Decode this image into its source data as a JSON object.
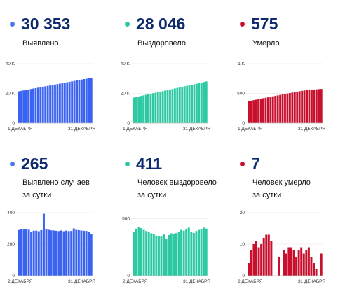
{
  "panels": [
    {
      "id": "cases-total",
      "value": "30 353",
      "label_lines": [
        "Выявлено"
      ],
      "color": "#3b63f2",
      "dot_color": "#4a75f0",
      "chart_data": {
        "type": "bar",
        "y_ticks": [
          0,
          20000,
          40000
        ],
        "y_tick_labels": [
          "0",
          "20 K",
          "40 K"
        ],
        "ylim": [
          0,
          40000
        ],
        "x_label_start": "1 ДЕКАБРЯ",
        "x_label_end": "31 ДЕКАБРЯ",
        "values": [
          21400,
          21710,
          22010,
          22320,
          22620,
          22930,
          23230,
          23540,
          23840,
          24150,
          24450,
          24760,
          25060,
          25370,
          25670,
          25980,
          26280,
          26590,
          26890,
          27200,
          27500,
          27810,
          28110,
          28420,
          28720,
          29030,
          29330,
          29640,
          29940,
          30150,
          30353
        ]
      }
    },
    {
      "id": "recovered-total",
      "value": "28 046",
      "label_lines": [
        "Выздоровело"
      ],
      "color": "#2ec9a3",
      "dot_color": "#2ec9a3",
      "chart_data": {
        "type": "bar",
        "y_ticks": [
          0,
          20000,
          40000
        ],
        "y_tick_labels": [
          "0",
          "20 K",
          "40 K"
        ],
        "ylim": [
          0,
          40000
        ],
        "x_label_start": "1 ДЕКАБРЯ",
        "x_label_end": "31 ДЕКАБРЯ",
        "values": [
          17200,
          17560,
          17920,
          18280,
          18640,
          19000,
          19360,
          19720,
          20080,
          20440,
          20800,
          21160,
          21520,
          21880,
          22240,
          22600,
          22960,
          23320,
          23680,
          24040,
          24400,
          24760,
          25120,
          25480,
          25840,
          26200,
          26560,
          26920,
          27280,
          27660,
          28046
        ]
      }
    },
    {
      "id": "deaths-total",
      "value": "575",
      "label_lines": [
        "Умерло"
      ],
      "color": "#c8102e",
      "dot_color": "#c8102e",
      "chart_data": {
        "type": "bar",
        "y_ticks": [
          0,
          500,
          1000
        ],
        "y_tick_labels": [
          "0",
          "500",
          "1 K"
        ],
        "ylim": [
          0,
          1000
        ],
        "x_label_start": "1 ДЕКАБРЯ",
        "x_label_end": "31 ДЕКАБРЯ",
        "values": [
          370,
          378,
          386,
          394,
          402,
          410,
          418,
          426,
          434,
          442,
          450,
          458,
          466,
          474,
          482,
          490,
          498,
          506,
          514,
          522,
          530,
          538,
          544,
          550,
          555,
          559,
          563,
          566,
          569,
          572,
          575
        ]
      }
    },
    {
      "id": "cases-daily",
      "value": "265",
      "label_lines": [
        "Выявлено случаев",
        "за сутки"
      ],
      "color": "#3b63f2",
      "dot_color": "#4a75f0",
      "chart_data": {
        "type": "bar",
        "y_ticks": [
          0,
          200,
          400
        ],
        "y_tick_labels": [
          "0",
          "200",
          "400"
        ],
        "ylim": [
          0,
          400
        ],
        "x_label_start": "2 ДЕКАБРЯ",
        "x_label_end": "31 ДЕКАБРЯ",
        "values": [
          290,
          295,
          293,
          298,
          292,
          280,
          285,
          286,
          282,
          289,
          393,
          296,
          291,
          288,
          287,
          285,
          283,
          287,
          282,
          286,
          283,
          284,
          300,
          291,
          289,
          287,
          285,
          284,
          280,
          265
        ]
      }
    },
    {
      "id": "recovered-daily",
      "value": "411",
      "label_lines": [
        "Человек выздоровело",
        "за сутки"
      ],
      "color": "#2ec9a3",
      "dot_color": "#2ec9a3",
      "chart_data": {
        "type": "bar",
        "y_ticks": [
          0,
          500
        ],
        "y_tick_labels": [
          "0",
          "500"
        ],
        "ylim": [
          0,
          550
        ],
        "x_label_start": "2 ДЕКАБРЯ",
        "x_label_end": "31 ДЕКАБРЯ",
        "values": [
          380,
          410,
          425,
          415,
          400,
          390,
          380,
          370,
          362,
          350,
          345,
          342,
          360,
          318,
          355,
          370,
          363,
          372,
          385,
          400,
          393,
          410,
          420,
          385,
          373,
          390,
          400,
          405,
          420,
          411
        ]
      }
    },
    {
      "id": "deaths-daily",
      "value": "7",
      "label_lines": [
        "Человек умерло",
        "за сутки"
      ],
      "color": "#c8102e",
      "dot_color": "#c8102e",
      "chart_data": {
        "type": "bar",
        "y_ticks": [
          0,
          10,
          20
        ],
        "y_tick_labels": [
          "0",
          "10",
          "20"
        ],
        "ylim": [
          0,
          20
        ],
        "x_label_start": "2 ДЕКАБРЯ",
        "x_label_end": "31 ДЕКАБРЯ",
        "values": [
          4,
          8,
          10,
          11,
          9,
          10,
          12,
          13,
          13,
          11,
          0,
          0,
          6,
          0,
          8,
          7,
          9,
          9,
          8,
          6,
          8,
          9,
          7,
          8,
          9,
          6,
          4,
          2,
          0,
          7
        ]
      }
    }
  ]
}
